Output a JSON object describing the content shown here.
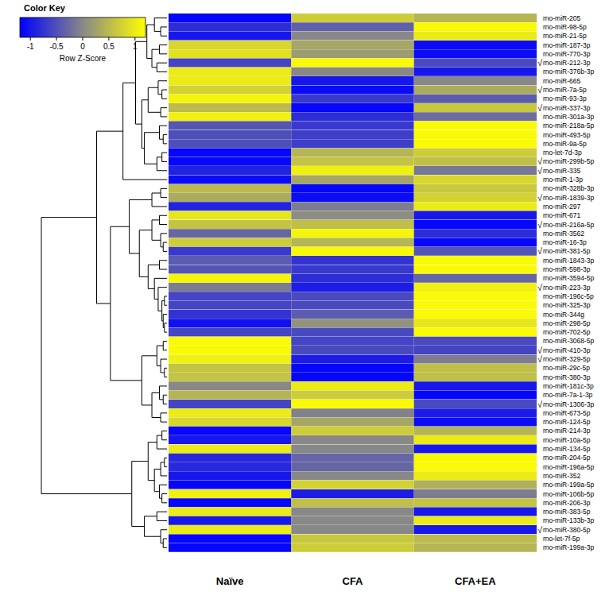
{
  "chart_data": {
    "type": "heatmap",
    "columns": [
      "Naïve",
      "CFA",
      "CFA+EA"
    ],
    "rows": [
      "rno-miR-205",
      "rno-miR-98-5p",
      "rno-miR-21-5p",
      "rno-miR-187-3p",
      "rno-miR-770-3p",
      "rno-miR-212-3p",
      "rno-miR-376b-3p",
      "rno-miR-665",
      "rno-miR-7a-5p",
      "rno-miR-93-3p",
      "rno-miR-337-3p",
      "rno-miR-301a-3p",
      "rno-miR-218a-5p",
      "rno-miR-493-5p",
      "rno-miR-9a-5p",
      "rno-let-7d-3p",
      "rno-miR-299b-5p",
      "rno-miR-335",
      "rno-miR-1-3p",
      "rno-miR-328b-3p",
      "rno-miR-1839-3p",
      "rno-miR-297",
      "rno-miR-671",
      "rno-miR-216a-5p",
      "rno-miR-3562",
      "rno-miR-16-3p",
      "rno-miR-381-5p",
      "rno-miR-1843-3p",
      "rno-miR-598-3p",
      "rno-miR-3594-5p",
      "rno-miR-223-3p",
      "rno-miR-196c-5p",
      "rno-miR-325-3p",
      "rno-miR-344g",
      "rno-miR-298-5p",
      "rno-miR-702-5p",
      "rno-miR-3068-5p",
      "rno-miR-410-3p",
      "rno-miR-329-5p",
      "rno-miR-29c-5p",
      "rno-miR-380-3p",
      "rno-miR-181c-3p",
      "rno-miR-7a-1-3p",
      "rno-miR-1306-3p",
      "rno-miR-673-5p",
      "rno-miR-124-5p",
      "rno-miR-214-3p",
      "rno-miR-10a-5p",
      "rno-miR-134-5p",
      "rno-miR-204-5p",
      "rno-miR-196a-5p",
      "rno-miR-352",
      "rno-miR-199a-5p",
      "rno-miR-106b-5p",
      "rno-miR-206-3p",
      "rno-miR-383-5p",
      "rno-miR-133b-3p",
      "rno-miR-380-5p",
      "rno-let-7f-5p",
      "rno-miR-199a-3p"
    ],
    "values": [
      [
        -1.15,
        0.7,
        0.45
      ],
      [
        -0.8,
        -0.35,
        1.15
      ],
      [
        -1,
        0,
        1
      ],
      [
        0.8,
        0.3,
        -1.1
      ],
      [
        0.9,
        0.2,
        -1.1
      ],
      [
        -0.6,
        1.15,
        -0.55
      ],
      [
        1,
        0,
        -1
      ],
      [
        1,
        -1,
        0
      ],
      [
        0.75,
        -1.1,
        0.35
      ],
      [
        1.1,
        -0.7,
        -0.4
      ],
      [
        0.5,
        -1.15,
        0.65
      ],
      [
        1.05,
        -0.8,
        -0.25
      ],
      [
        -0.45,
        -0.7,
        1.15
      ],
      [
        -0.5,
        -0.65,
        1.15
      ],
      [
        -0.5,
        -0.65,
        1.15
      ],
      [
        -1.15,
        0.45,
        0.7
      ],
      [
        -1.15,
        0.6,
        0.55
      ],
      [
        -0.9,
        1.05,
        -0.15
      ],
      [
        -1.1,
        0.3,
        0.8
      ],
      [
        0.5,
        -1.15,
        0.65
      ],
      [
        0.35,
        -1.1,
        0.75
      ],
      [
        -0.9,
        -0.1,
        1
      ],
      [
        0.95,
        0.05,
        -1
      ],
      [
        0.6,
        0.55,
        -1.15
      ],
      [
        -0.3,
        1.1,
        -0.8
      ],
      [
        0.7,
        0.45,
        -1.15
      ],
      [
        -0.7,
        1.15,
        -0.45
      ],
      [
        -0.4,
        -0.75,
        1.15
      ],
      [
        -0.45,
        -0.7,
        1.15
      ],
      [
        1.1,
        -0.8,
        -0.3
      ],
      [
        -0.1,
        -0.95,
        1.05
      ],
      [
        -0.6,
        -0.55,
        1.15
      ],
      [
        -0.6,
        -0.55,
        1.15
      ],
      [
        -0.75,
        -0.4,
        1.15
      ],
      [
        -1.05,
        0.1,
        0.95
      ],
      [
        -0.6,
        -0.55,
        1.15
      ],
      [
        1.15,
        -0.6,
        -0.55
      ],
      [
        1.15,
        -0.55,
        -0.6
      ],
      [
        1.05,
        -0.95,
        -0.1
      ],
      [
        0.6,
        -1.15,
        0.55
      ],
      [
        0.6,
        -1.15,
        0.55
      ],
      [
        0,
        1,
        -1
      ],
      [
        0.45,
        0.7,
        -1.15
      ],
      [
        -0.6,
        1.15,
        -0.55
      ],
      [
        1,
        -0.05,
        -0.95
      ],
      [
        0.8,
        0.3,
        -1.1
      ],
      [
        -1.15,
        0.7,
        0.45
      ],
      [
        -1,
        0,
        1
      ],
      [
        1,
        0,
        -1
      ],
      [
        -0.85,
        -0.3,
        1.15
      ],
      [
        -0.85,
        -0.3,
        1.15
      ],
      [
        -1,
        0,
        1
      ],
      [
        -1.15,
        0.75,
        0.4
      ],
      [
        1.05,
        -0.95,
        -0.1
      ],
      [
        -1.15,
        0.55,
        0.6
      ],
      [
        1,
        0,
        -1
      ],
      [
        -1,
        0,
        1
      ],
      [
        1,
        0,
        -1
      ],
      [
        -1.15,
        0.65,
        0.5
      ],
      [
        -1.15,
        0.7,
        0.45
      ]
    ],
    "marked": [
      false,
      false,
      false,
      false,
      false,
      true,
      false,
      false,
      true,
      false,
      true,
      false,
      false,
      false,
      false,
      false,
      true,
      true,
      false,
      false,
      true,
      false,
      false,
      true,
      false,
      false,
      true,
      false,
      false,
      false,
      true,
      false,
      false,
      false,
      false,
      false,
      false,
      true,
      true,
      false,
      false,
      false,
      false,
      true,
      false,
      false,
      false,
      false,
      false,
      false,
      false,
      false,
      false,
      false,
      false,
      false,
      false,
      true,
      false,
      false
    ],
    "mark_symbol": "√",
    "color_bar": {
      "title": "Color Key",
      "label": "Row Z-Score",
      "range": [
        -1.2,
        1.2
      ],
      "ticks": [
        -1,
        -0.5,
        0,
        0.5,
        1
      ],
      "colors": [
        "#0000ff",
        "#888888",
        "#ffff00"
      ]
    },
    "row_dendrogram": {
      "h": 1,
      "c": [
        {
          "h": 0.56,
          "c": [
            {
              "h": 0.35,
              "c": [
                {
                  "h": 0.25,
                  "c": [
                    {
                      "h": 0.16,
                      "c": [
                        {
                          "h": 0.1,
                          "c": [
                            0,
                            {
                              "h": 0.05,
                              "c": [
                                1,
                                2
                              ]
                            }
                          ]
                        },
                        {
                          "h": 0.12,
                          "c": [
                            {
                              "h": 0.06,
                              "c": [
                                3,
                                4
                              ]
                            },
                            {
                              "h": 0.08,
                              "c": [
                                5,
                                6
                              ]
                            }
                          ]
                        }
                      ]
                    },
                    {
                      "h": 0.2,
                      "c": [
                        {
                          "h": 0.15,
                          "c": [
                            {
                              "h": 0.07,
                              "c": [
                                7,
                                {
                                  "h": 0.04,
                                  "c": [
                                    8,
                                    9
                                  ]
                                }
                              ]
                            },
                            {
                              "h": 0.05,
                              "c": [
                                10,
                                11
                              ]
                            }
                          ]
                        },
                        {
                          "h": 0.18,
                          "c": [
                            {
                              "h": 0.06,
                              "c": [
                                12,
                                {
                                  "h": 0.03,
                                  "c": [
                                    13,
                                    14
                                  ]
                                }
                              ]
                            },
                            {
                              "h": 0.08,
                              "c": [
                                {
                                  "h": 0.04,
                                  "c": [
                                    15,
                                    16
                                  ]
                                },
                                17
                              ]
                            }
                          ]
                        }
                      ]
                    }
                  ]
                },
                18
              ]
            },
            {
              "h": 0.45,
              "c": [
                {
                  "h": 0.3,
                  "c": [
                    {
                      "h": 0.12,
                      "c": [
                        {
                          "h": 0.05,
                          "c": [
                            19,
                            20
                          ]
                        },
                        21
                      ]
                    },
                    {
                      "h": 0.22,
                      "c": [
                        {
                          "h": 0.12,
                          "c": [
                            {
                              "h": 0.06,
                              "c": [
                                22,
                                23
                              ]
                            },
                            {
                              "h": 0.05,
                              "c": [
                                24,
                                {
                                  "h": 0.03,
                                  "c": [
                                    25,
                                    26
                                  ]
                                }
                              ]
                            }
                          ]
                        },
                        {
                          "h": 0.15,
                          "c": [
                            {
                              "h": 0.06,
                              "c": [
                                27,
                                28
                              ]
                            },
                            {
                              "h": 0.1,
                              "c": [
                                29,
                                {
                                  "h": 0.07,
                                  "c": [
                                    30,
                                    {
                                      "h": 0.04,
                                      "c": [
                                        {
                                          "h": 0.02,
                                          "c": [
                                            31,
                                            32
                                          ]
                                        },
                                        {
                                          "h": 0.03,
                                          "c": [
                                            33,
                                            {
                                              "h": 0.02,
                                              "c": [
                                                34,
                                                35
                                              ]
                                            }
                                          ]
                                        }
                                      ]
                                    }
                                  ]
                                }
                              ]
                            }
                          ]
                        }
                      ]
                    }
                  ]
                },
                {
                  "h": 0.2,
                  "c": [
                    {
                      "h": 0.08,
                      "c": [
                        {
                          "h": 0.03,
                          "c": [
                            36,
                            37
                          ]
                        },
                        {
                          "h": 0.05,
                          "c": [
                            38,
                            {
                              "h": 0.02,
                              "c": [
                                39,
                                40
                              ]
                            }
                          ]
                        }
                      ]
                    },
                    {
                      "h": 0.12,
                      "c": [
                        {
                          "h": 0.06,
                          "c": [
                            41,
                            {
                              "h": 0.03,
                              "c": [
                                42,
                                43
                              ]
                            }
                          ]
                        },
                        {
                          "h": 0.05,
                          "c": [
                            44,
                            45
                          ]
                        }
                      ]
                    }
                  ]
                }
              ]
            }
          ]
        },
        {
          "h": 0.28,
          "c": [
            {
              "h": 0.15,
              "c": [
                {
                  "h": 0.08,
                  "c": [
                    {
                      "h": 0.04,
                      "c": [
                        46,
                        47
                      ]
                    },
                    48
                  ]
                },
                {
                  "h": 0.1,
                  "c": [
                    {
                      "h": 0.05,
                      "c": [
                        {
                          "h": 0.02,
                          "c": [
                            49,
                            50
                          ]
                        },
                        51
                      ]
                    },
                    {
                      "h": 0.06,
                      "c": [
                        52,
                        {
                          "h": 0.04,
                          "c": [
                            53,
                            54
                          ]
                        }
                      ]
                    }
                  ]
                }
              ]
            },
            {
              "h": 0.18,
              "c": [
                {
                  "h": 0.08,
                  "c": [
                    55,
                    56
                  ]
                },
                {
                  "h": 0.05,
                  "c": [
                    57,
                    {
                      "h": 0.03,
                      "c": [
                        58,
                        59
                      ]
                    }
                  ]
                }
              ]
            }
          ]
        }
      ]
    }
  }
}
